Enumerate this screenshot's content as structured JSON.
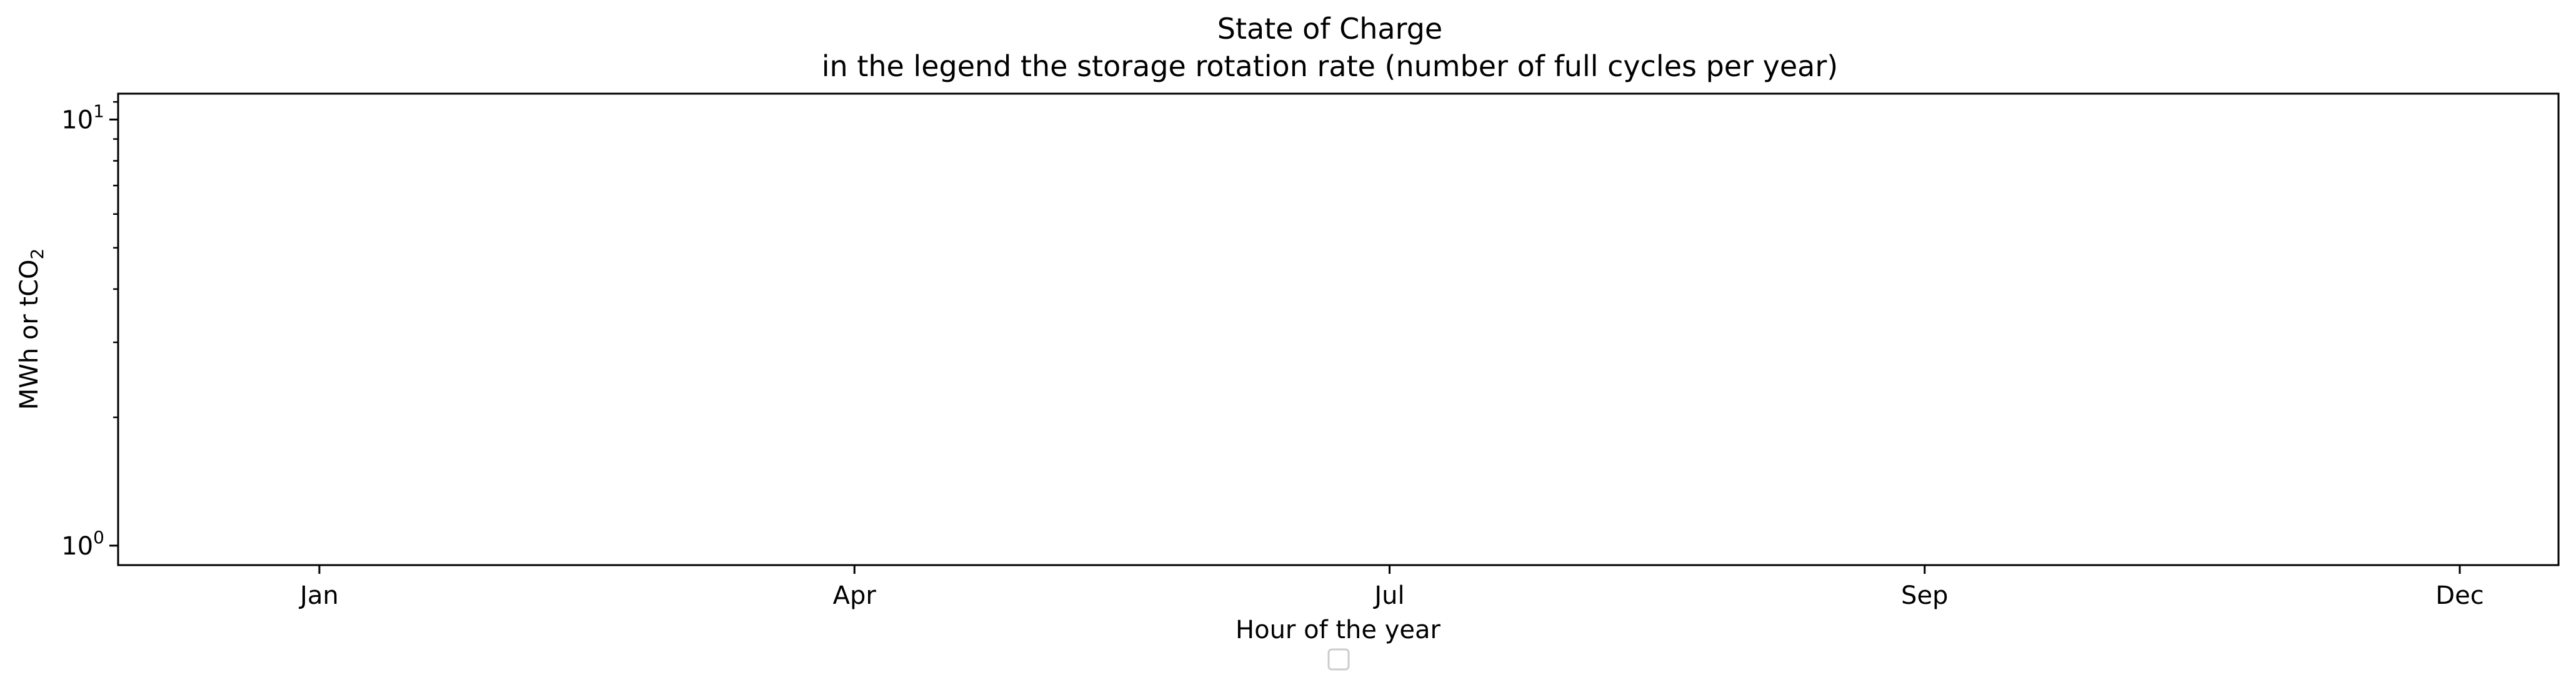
{
  "chart_data": {
    "type": "line",
    "title": "State of Charge",
    "subtitle": "in the legend the storage rotation rate (number of full cycles per year)",
    "xlabel": "Hour of the year",
    "ylabel_main": "MWh or tCO",
    "ylabel_subscript": "2",
    "x_ticks": [
      "Jan",
      "Apr",
      "Jul",
      "Sep",
      "Dec"
    ],
    "y_scale": "log",
    "y_ticks": [
      {
        "base": "10",
        "exp": "0",
        "value": 1
      },
      {
        "base": "10",
        "exp": "1",
        "value": 10
      }
    ],
    "ylim": [
      0.9,
      11.5
    ],
    "series": [],
    "legend": {
      "placement": "bottom-center",
      "entries": []
    },
    "grid": false
  }
}
